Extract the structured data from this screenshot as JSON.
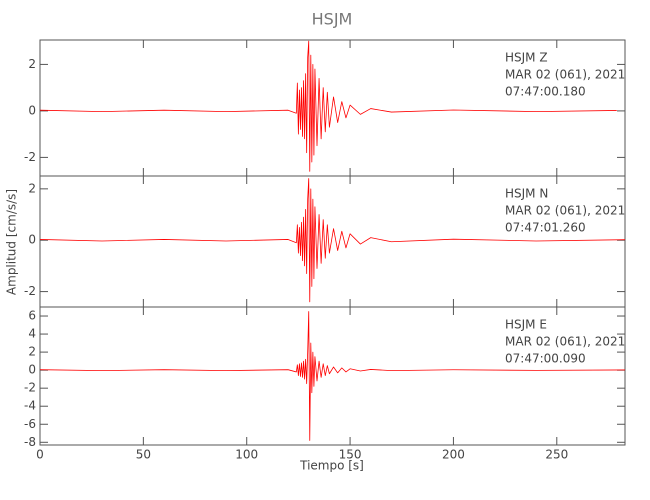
{
  "title": "HSJM",
  "y_label": "Amplitud [cm/s/s]",
  "x_label": "Tiempo [s]",
  "chart_data": [
    {
      "type": "line",
      "annotations": [
        "HSJM   Z",
        "MAR 02 (061), 2021",
        "07:47:00.180"
      ],
      "xlim": [
        0,
        283
      ],
      "xticks": [
        0,
        50,
        100,
        150,
        200,
        250
      ],
      "ylim": [
        -2.8,
        3.05
      ],
      "yticks": [
        -2,
        0,
        2
      ],
      "x": [
        0,
        30,
        60,
        90,
        120,
        124,
        124.5,
        125,
        125.5,
        126,
        126.5,
        127,
        127.5,
        128,
        128.5,
        129,
        129.5,
        130,
        130.5,
        131,
        131.5,
        132,
        132.5,
        133,
        134,
        135,
        136,
        137,
        138,
        139,
        140,
        142,
        144,
        146,
        148,
        150,
        155,
        160,
        170,
        200,
        240,
        279
      ],
      "series": [
        {
          "color": "#ff0000",
          "values": [
            0.03,
            -0.03,
            0.03,
            -0.03,
            0.03,
            -0.1,
            1.2,
            -1.0,
            0.9,
            -0.8,
            1.0,
            -1.1,
            1.3,
            -1.2,
            1.6,
            -1.8,
            2.3,
            3.0,
            -2.6,
            2.4,
            -2.2,
            2.0,
            -1.9,
            1.8,
            -1.5,
            1.4,
            -1.2,
            1.0,
            -0.9,
            0.8,
            -0.7,
            0.6,
            -0.5,
            0.4,
            -0.3,
            0.25,
            -0.15,
            0.1,
            -0.05,
            0.04,
            -0.03,
            0.02
          ]
        }
      ]
    },
    {
      "type": "line",
      "annotations": [
        "HSJM   N",
        "MAR 02 (061), 2021",
        "07:47:01.260"
      ],
      "xlim": [
        0,
        283
      ],
      "xticks": [
        0,
        50,
        100,
        150,
        200,
        250
      ],
      "ylim": [
        -2.6,
        2.5
      ],
      "yticks": [
        -2,
        0,
        2
      ],
      "x": [
        0,
        30,
        60,
        90,
        120,
        124,
        124.5,
        125,
        125.5,
        126,
        126.5,
        127,
        127.5,
        128,
        128.5,
        129,
        129.5,
        130,
        130.5,
        131,
        131.5,
        132,
        132.5,
        133,
        134,
        135,
        136,
        137,
        138,
        139,
        140,
        142,
        144,
        146,
        148,
        150,
        155,
        160,
        170,
        200,
        240,
        283
      ],
      "series": [
        {
          "color": "#ff0000",
          "values": [
            0.03,
            -0.03,
            0.03,
            -0.03,
            0.03,
            -0.1,
            0.6,
            -0.5,
            0.5,
            -0.6,
            0.7,
            -0.8,
            0.9,
            -1.0,
            1.2,
            -1.3,
            1.6,
            2.4,
            -2.4,
            2.0,
            -1.8,
            1.6,
            -1.5,
            1.3,
            -1.1,
            1.0,
            -0.9,
            0.8,
            -0.7,
            0.6,
            -0.5,
            0.45,
            -0.4,
            0.35,
            -0.3,
            0.25,
            -0.15,
            0.1,
            -0.06,
            0.04,
            -0.03,
            0.02
          ]
        }
      ]
    },
    {
      "type": "line",
      "annotations": [
        "HSJM   E",
        "MAR 02 (061), 2021",
        "07:47:00.090"
      ],
      "xlim": [
        0,
        283
      ],
      "xticks": [
        0,
        50,
        100,
        150,
        200,
        250
      ],
      "ylim": [
        -8.3,
        7
      ],
      "yticks": [
        -8,
        -6,
        -4,
        -2,
        0,
        2,
        4,
        6
      ],
      "x": [
        0,
        30,
        60,
        90,
        120,
        124,
        124.5,
        125,
        125.5,
        126,
        126.5,
        127,
        127.5,
        128,
        128.5,
        129,
        129.5,
        130,
        130.5,
        131,
        131.5,
        132,
        132.5,
        133,
        134,
        135,
        136,
        137,
        138,
        139,
        140,
        142,
        144,
        146,
        148,
        150,
        155,
        160,
        170,
        200,
        240,
        283
      ],
      "series": [
        {
          "color": "#ff0000",
          "values": [
            0.05,
            -0.05,
            0.05,
            -0.05,
            0.05,
            -0.2,
            0.6,
            -0.6,
            0.7,
            -0.7,
            0.8,
            -0.8,
            1.0,
            -1.0,
            1.2,
            -1.5,
            2.0,
            6.5,
            -7.8,
            3.0,
            -2.5,
            2.0,
            -1.8,
            1.5,
            -1.2,
            1.0,
            -0.8,
            0.7,
            -0.6,
            0.5,
            -0.4,
            0.35,
            -0.3,
            0.25,
            -0.2,
            0.15,
            -0.1,
            0.08,
            -0.05,
            0.04,
            -0.03,
            0.02
          ]
        }
      ]
    }
  ]
}
